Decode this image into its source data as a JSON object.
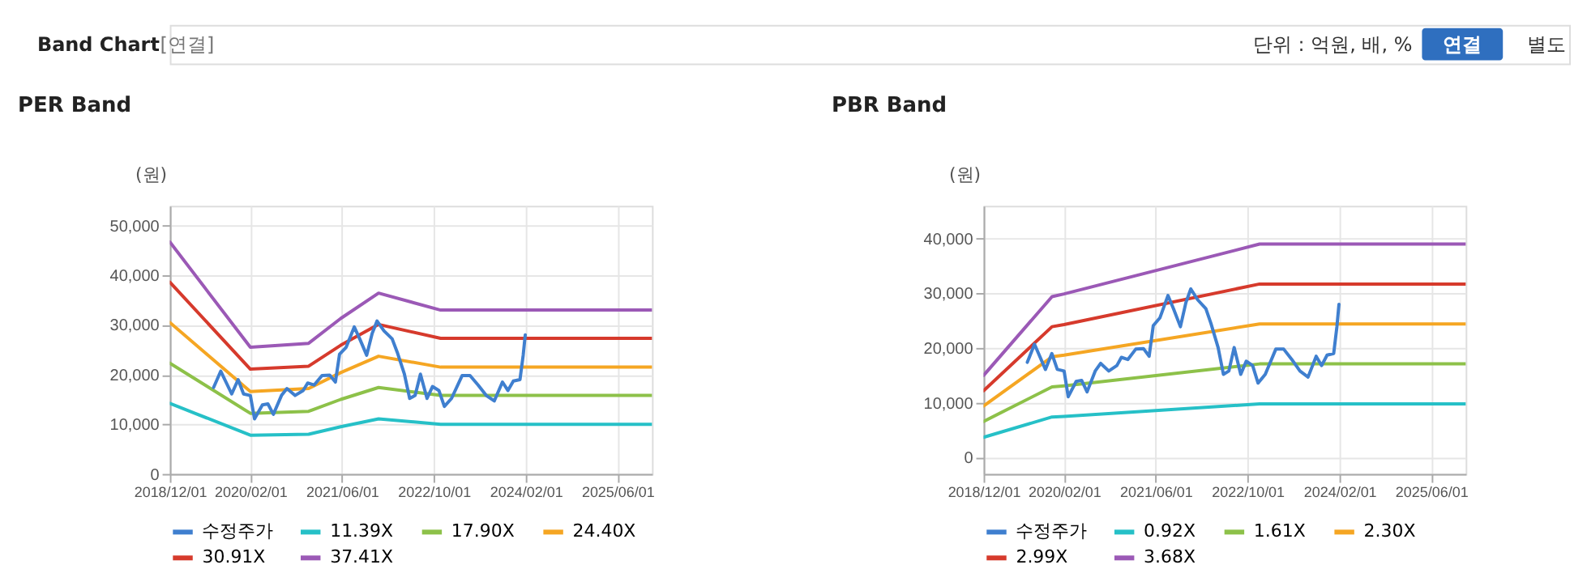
{
  "chart_data": [
    {
      "type": "line",
      "title": "PER Band",
      "ylabel": "(원)",
      "annotations": [
        "Band Chart",
        "[연결]",
        "단위 : 억원, 배, %",
        "연결",
        "별도"
      ],
      "x": [
        "2018-12-01",
        "2020-02-01",
        "2020-12-06",
        "2021-05-25",
        "2021-12-12",
        "2022-11-06",
        "2025-12-01"
      ],
      "series": [
        {
          "name": "수정주가",
          "color": "#3f7fcf",
          "x": [
            "2019-07-21",
            "2019-08-28",
            "2019-10-25",
            "2019-11-28",
            "2019-12-27",
            "2020-02-01",
            "2020-02-23",
            "2020-04-05",
            "2020-05-04",
            "2020-06-02",
            "2020-07-15",
            "2020-08-13",
            "2020-09-25",
            "2020-11-07",
            "2020-12-01",
            "2021-01-04",
            "2021-02-15",
            "2021-03-28",
            "2021-04-27",
            "2021-05-19",
            "2021-06-23",
            "2021-08-05",
            "2021-09-03",
            "2021-10-10",
            "2021-11-08",
            "2021-12-04",
            "2022-01-10",
            "2022-02-22",
            "2022-03-21",
            "2022-04-28",
            "2022-05-26",
            "2022-06-24",
            "2022-07-22",
            "2022-08-26",
            "2022-09-24",
            "2022-10-28",
            "2022-11-26",
            "2023-01-03",
            "2023-02-28",
            "2023-04-11",
            "2023-05-24",
            "2023-07-06",
            "2023-08-18",
            "2023-09-30",
            "2023-10-29",
            "2023-11-27",
            "2024-01-01",
            "2024-01-18",
            "2024-01-29"
          ],
          "values": [
            17400,
            20700,
            16100,
            19000,
            16100,
            15800,
            11100,
            13900,
            14100,
            12000,
            15800,
            17200,
            15800,
            16800,
            18300,
            17900,
            19800,
            19900,
            18500,
            24100,
            25500,
            29600,
            27200,
            23900,
            28300,
            30800,
            28800,
            27200,
            24500,
            20100,
            15200,
            15800,
            20100,
            15200,
            17600,
            16800,
            13600,
            15200,
            19800,
            19800,
            17900,
            15800,
            14700,
            18500,
            16800,
            18700,
            19000,
            23900,
            28000
          ]
        },
        {
          "name": "11.39X",
          "color": "#26c0c7",
          "values": [
            14200,
            7800,
            8000,
            9500,
            11100,
            10000,
            10000
          ]
        },
        {
          "name": "17.90X",
          "color": "#8dc149",
          "values": [
            22300,
            12200,
            12600,
            15000,
            17400,
            15800,
            15800
          ]
        },
        {
          "name": "24.40X",
          "color": "#f5a623",
          "values": [
            30500,
            16600,
            17200,
            20400,
            23700,
            21500,
            21500
          ]
        },
        {
          "name": "30.91X",
          "color": "#d63a2c",
          "values": [
            38600,
            21100,
            21700,
            25900,
            30100,
            27300,
            27300
          ]
        },
        {
          "name": "37.41X",
          "color": "#9b59b6",
          "values": [
            46700,
            25500,
            26300,
            31300,
            36400,
            33000,
            33000
          ]
        }
      ],
      "xlim": [
        "2018-12-01",
        "2025-12-01"
      ],
      "xticks": [
        {
          "value": "2018-12-01",
          "label": "2018/12/01"
        },
        {
          "value": "2020-02-01",
          "label": "2020/02/01"
        },
        {
          "value": "2021-06-01",
          "label": "2021/06/01"
        },
        {
          "value": "2022-10-01",
          "label": "2022/10/01"
        },
        {
          "value": "2024-02-01",
          "label": "2024/02/01"
        },
        {
          "value": "2025-06-01",
          "label": "2025/06/01"
        }
      ],
      "ylim": [
        0,
        54000
      ],
      "yticks": [
        {
          "value": 0,
          "label": "0"
        },
        {
          "value": 10000,
          "label": "10,000"
        },
        {
          "value": 20000,
          "label": "20,000"
        },
        {
          "value": 30000,
          "label": "30,000"
        },
        {
          "value": 40000,
          "label": "40,000"
        },
        {
          "value": 50000,
          "label": "50,000"
        }
      ],
      "grid": true,
      "legend": "bottom",
      "marker": "none",
      "line_style": "solid"
    },
    {
      "type": "line",
      "title": "PBR Band",
      "ylabel": "(원)",
      "x": [
        "2018-12-01",
        "2019-11-29",
        "2020-02-01",
        "2022-12-04",
        "2025-12-01"
      ],
      "series": [
        {
          "name": "수정주가",
          "color": "#3f7fcf",
          "x": [
            "2019-07-21",
            "2019-08-28",
            "2019-10-25",
            "2019-11-28",
            "2019-12-27",
            "2020-02-01",
            "2020-02-23",
            "2020-04-05",
            "2020-05-04",
            "2020-06-02",
            "2020-07-15",
            "2020-08-13",
            "2020-09-25",
            "2020-11-07",
            "2020-12-01",
            "2021-01-04",
            "2021-02-15",
            "2021-03-28",
            "2021-04-27",
            "2021-05-19",
            "2021-06-23",
            "2021-08-05",
            "2021-09-03",
            "2021-10-10",
            "2021-11-08",
            "2021-12-04",
            "2022-01-10",
            "2022-02-22",
            "2022-03-21",
            "2022-04-28",
            "2022-05-26",
            "2022-06-24",
            "2022-07-22",
            "2022-08-26",
            "2022-09-24",
            "2022-10-28",
            "2022-11-26",
            "2023-01-03",
            "2023-02-28",
            "2023-04-11",
            "2023-05-24",
            "2023-07-06",
            "2023-08-18",
            "2023-09-30",
            "2023-10-29",
            "2023-11-27",
            "2024-01-01",
            "2024-01-18",
            "2024-01-29"
          ],
          "values": [
            17400,
            20700,
            16100,
            19000,
            16100,
            15800,
            11100,
            13900,
            14100,
            12000,
            15800,
            17200,
            15800,
            16800,
            18300,
            17900,
            19800,
            19900,
            18500,
            24100,
            25500,
            29600,
            27200,
            23900,
            28300,
            30800,
            28800,
            27200,
            24500,
            20100,
            15200,
            15800,
            20100,
            15200,
            17600,
            16800,
            13600,
            15200,
            19800,
            19800,
            17900,
            15800,
            14700,
            18500,
            16800,
            18700,
            19000,
            23900,
            28000
          ]
        },
        {
          "name": "0.92X",
          "color": "#26c0c7",
          "values": [
            3700,
            7400,
            7500,
            9800,
            9800
          ]
        },
        {
          "name": "1.61X",
          "color": "#8dc149",
          "values": [
            6600,
            12900,
            13100,
            17100,
            17100
          ]
        },
        {
          "name": "2.30X",
          "color": "#f5a623",
          "values": [
            9400,
            18400,
            18700,
            24400,
            24400
          ]
        },
        {
          "name": "2.99X",
          "color": "#d63a2c",
          "values": [
            12200,
            23900,
            24300,
            31700,
            31700
          ]
        },
        {
          "name": "3.68X",
          "color": "#9b59b6",
          "values": [
            15000,
            29400,
            29900,
            39000,
            39000
          ]
        }
      ],
      "xlim": [
        "2018-12-01",
        "2025-12-01"
      ],
      "xticks": [
        {
          "value": "2018-12-01",
          "label": "2018/12/01"
        },
        {
          "value": "2020-02-01",
          "label": "2020/02/01"
        },
        {
          "value": "2021-06-01",
          "label": "2021/06/01"
        },
        {
          "value": "2022-10-01",
          "label": "2022/10/01"
        },
        {
          "value": "2024-02-01",
          "label": "2024/02/01"
        },
        {
          "value": "2025-06-01",
          "label": "2025/06/01"
        }
      ],
      "ylim": [
        -3000,
        46000
      ],
      "yticks": [
        {
          "value": 0,
          "label": "0"
        },
        {
          "value": 10000,
          "label": "10,000"
        },
        {
          "value": 20000,
          "label": "20,000"
        },
        {
          "value": 30000,
          "label": "30,000"
        },
        {
          "value": 40000,
          "label": "40,000"
        }
      ],
      "grid": true,
      "legend": "bottom",
      "marker": "none",
      "line_style": "solid"
    }
  ]
}
